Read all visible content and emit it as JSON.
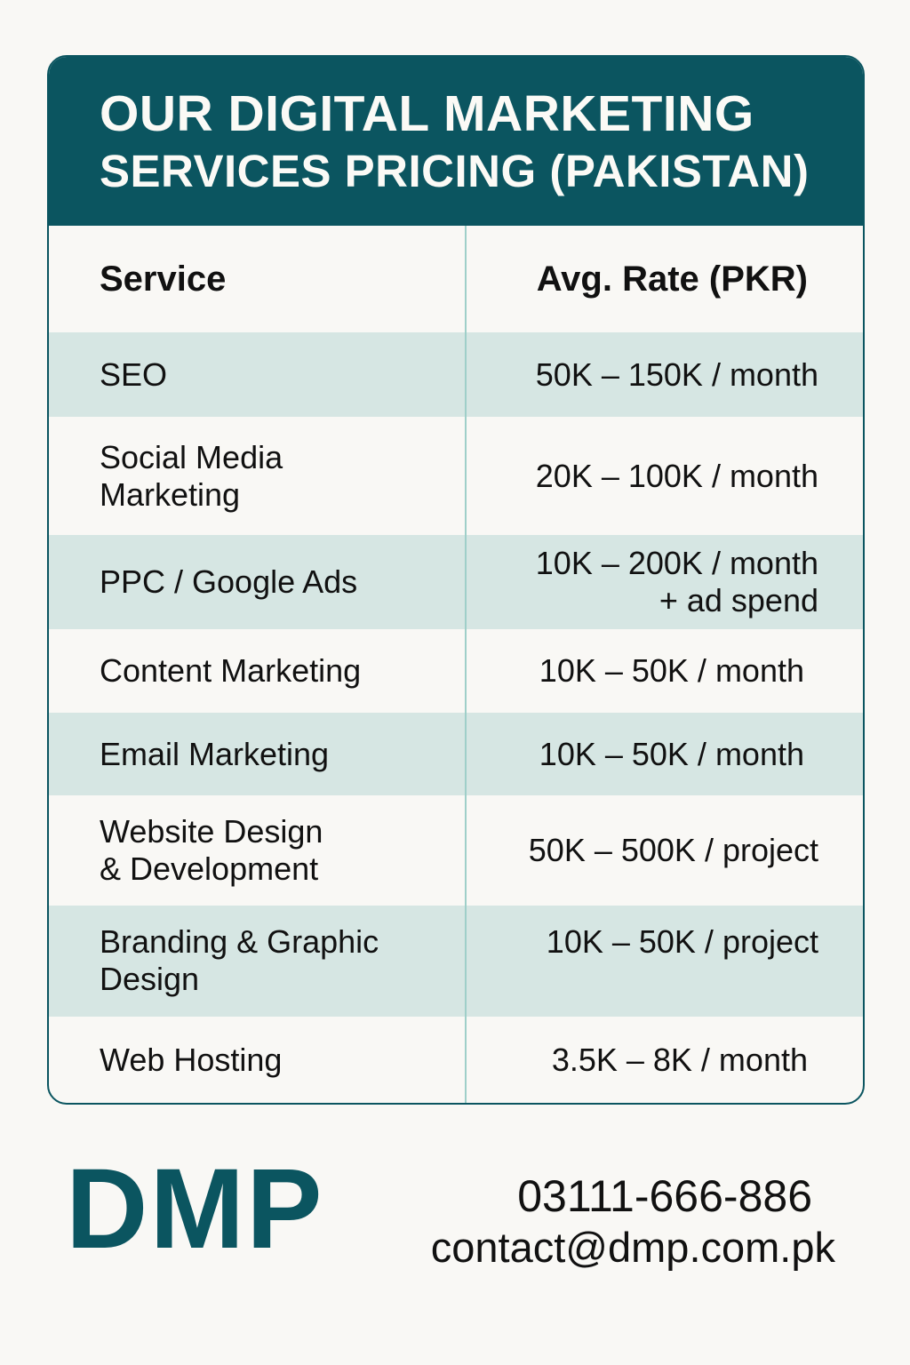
{
  "header": {
    "title_line1": "OUR DIGITAL MARKETING",
    "title_line2": "SERVICES PRICING (PAKISTAN)"
  },
  "table": {
    "columns": [
      "Service",
      "Avg. Rate (PKR)"
    ],
    "rows": [
      {
        "service": "SEO",
        "rate": "50K – 150K / month"
      },
      {
        "service": "Social Media\nMarketing",
        "rate": "20K – 100K / month"
      },
      {
        "service": "PPC / Google Ads",
        "rate": "10K – 200K / month\n+ ad spend"
      },
      {
        "service": "Content Marketing",
        "rate": "10K – 50K / month"
      },
      {
        "service": "Email Marketing",
        "rate": "10K – 50K / month"
      },
      {
        "service": "Website Design\n& Development",
        "rate": "50K – 500K / project"
      },
      {
        "service": "Branding & Graphic\nDesign",
        "rate": "10K – 50K / project"
      },
      {
        "service": "Web Hosting",
        "rate": "3.5K – 8K / month"
      }
    ]
  },
  "footer": {
    "logo": "DMP",
    "phone": "03111-666-886",
    "email": "contact@dmp.com.pk"
  },
  "colors": {
    "brand": "#0b5560",
    "stripe": "#d6e6e3",
    "background": "#f9f8f5"
  }
}
